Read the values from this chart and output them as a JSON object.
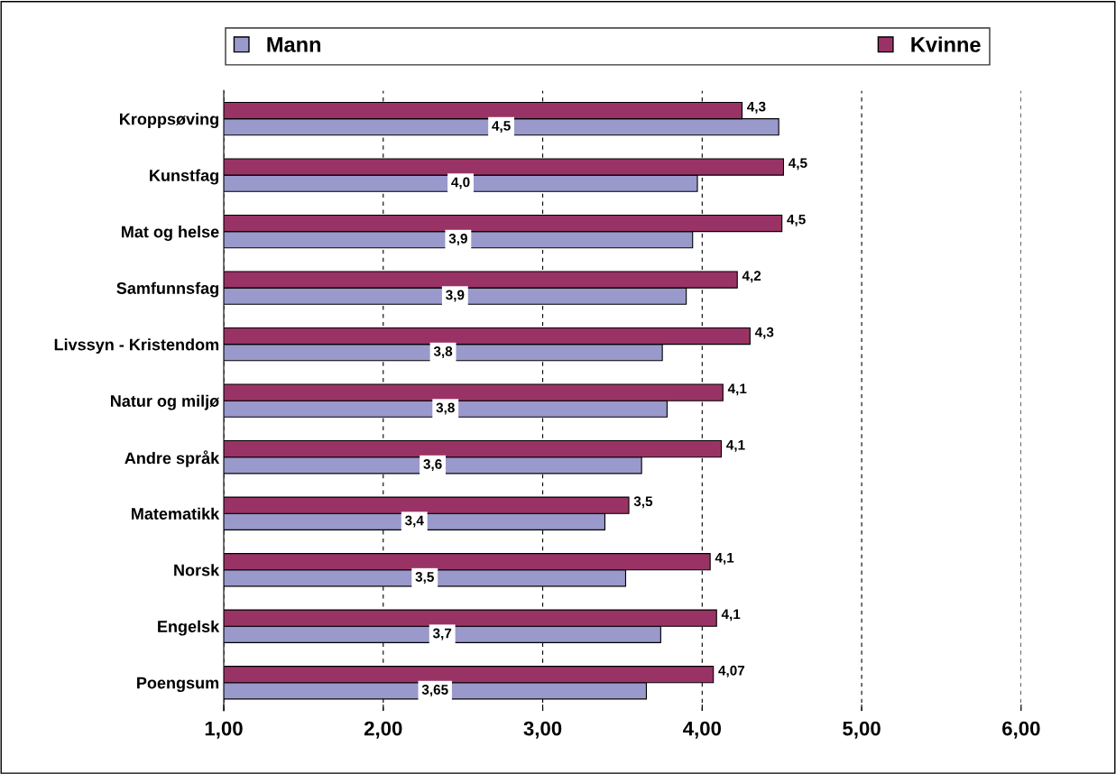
{
  "chart_data": {
    "type": "bar",
    "orientation": "horizontal",
    "categories": [
      "Kroppsøving",
      "Kunstfag",
      "Mat og helse",
      "Samfunnsfag",
      "Livssyn - Kristendom",
      "Natur og miljø",
      "Andre språk",
      "Matematikk",
      "Norsk",
      "Engelsk",
      "Poengsum"
    ],
    "series": [
      {
        "name": "Mann",
        "color": "#9999cc",
        "values": [
          4.48,
          3.97,
          3.94,
          3.9,
          3.75,
          3.78,
          3.62,
          3.39,
          3.52,
          3.74,
          3.65
        ],
        "value_labels": [
          "4,5",
          "4,0",
          "3,9",
          "3,9",
          "3,8",
          "3,8",
          "3,6",
          "3,4",
          "3,5",
          "3,7",
          "3,65"
        ]
      },
      {
        "name": "Kvinne",
        "color": "#993366",
        "values": [
          4.25,
          4.51,
          4.5,
          4.22,
          4.3,
          4.13,
          4.12,
          3.54,
          4.05,
          4.09,
          4.07
        ],
        "value_labels": [
          "4,3",
          "4,5",
          "4,5",
          "4,2",
          "4,3",
          "4,1",
          "4,1",
          "3,5",
          "4,1",
          "4,1",
          "4,07"
        ]
      }
    ],
    "xlim": [
      1,
      6
    ],
    "xticks": [
      {
        "value": 1,
        "label": "1,00"
      },
      {
        "value": 2,
        "label": "2,00"
      },
      {
        "value": 3,
        "label": "3,00"
      },
      {
        "value": 4,
        "label": "4,00"
      },
      {
        "value": 5,
        "label": "5,00"
      },
      {
        "value": 6,
        "label": "6,00"
      }
    ],
    "grid": "x",
    "legend": "top"
  }
}
